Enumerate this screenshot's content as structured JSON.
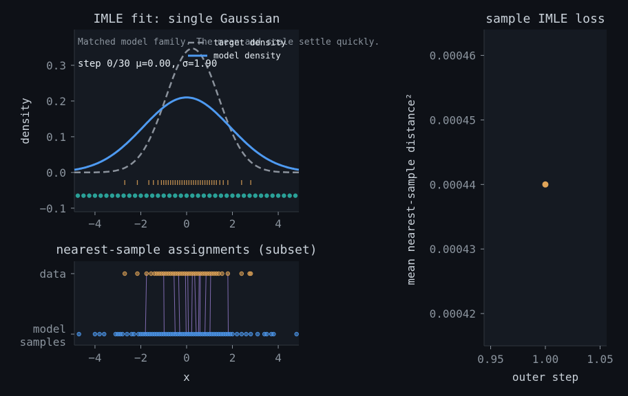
{
  "figure": {
    "background": "#0e1117",
    "panel_bg": "#151a22"
  },
  "colors": {
    "model": "#4e9af1",
    "target": "#8b929c",
    "data": "#e0a458",
    "samples_teal": "#2aa198",
    "match": "#9b7fd4",
    "text": "#c9d1d9",
    "tick": "#8b949e",
    "axis": "#30363d"
  },
  "chart_data": [
    {
      "id": "density",
      "type": "line",
      "title": "IMLE fit: single Gaussian",
      "xlabel": "",
      "ylabel": "density",
      "xlim": [
        -4.9,
        4.9
      ],
      "ylim": [
        -0.11,
        0.4
      ],
      "xticks": [
        "−4",
        "−2",
        "0",
        "2",
        "4"
      ],
      "xtick_values": [
        -4,
        -2,
        0,
        2,
        4
      ],
      "yticks": [
        "−0.1",
        "0.0",
        "0.1",
        "0.2",
        "0.3"
      ],
      "ytick_values": [
        -0.1,
        0.0,
        0.1,
        0.2,
        0.3
      ],
      "annotation": "Matched model family. The mean and scale settle quickly.",
      "status": "step 0/30   μ=0.00, σ=1.90",
      "legend_position": "top-center",
      "series": [
        {
          "name": "target density",
          "style": "dashed",
          "mu": 0.25,
          "sigma": 1.15
        },
        {
          "name": "model density",
          "style": "solid",
          "mu": 0.0,
          "sigma": 1.9
        }
      ],
      "data_rug": [
        -2.7,
        -2.15,
        -1.65,
        -1.45,
        -1.25,
        -1.1,
        -1.0,
        -0.9,
        -0.8,
        -0.7,
        -0.6,
        -0.5,
        -0.4,
        -0.3,
        -0.2,
        -0.1,
        0.0,
        0.1,
        0.2,
        0.3,
        0.4,
        0.5,
        0.6,
        0.7,
        0.8,
        0.9,
        1.0,
        1.1,
        1.2,
        1.3,
        1.45,
        1.6,
        1.8,
        2.4,
        2.8
      ],
      "sample_strip_y": -0.065,
      "sample_strip_x": [
        -4.75,
        -4.5,
        -4.25,
        -4.0,
        -3.75,
        -3.5,
        -3.25,
        -3.0,
        -2.75,
        -2.5,
        -2.25,
        -2.0,
        -1.75,
        -1.5,
        -1.25,
        -1.0,
        -0.75,
        -0.5,
        -0.25,
        0.0,
        0.25,
        0.5,
        0.75,
        1.0,
        1.25,
        1.5,
        1.75,
        2.0,
        2.25,
        2.5,
        2.75,
        3.0,
        3.25,
        3.5,
        3.75,
        4.0,
        4.25,
        4.5,
        4.75
      ]
    },
    {
      "id": "assignments",
      "type": "scatter",
      "title": "nearest-sample assignments (subset)",
      "xlabel": "x",
      "ylabel": "",
      "xlim": [
        -4.9,
        4.9
      ],
      "xticks": [
        "−4",
        "−2",
        "0",
        "2",
        "4"
      ],
      "xtick_values": [
        -4,
        -2,
        0,
        2,
        4
      ],
      "ytick_labels": {
        "data": "data",
        "model_line1": "model",
        "model_line2": "samples"
      },
      "data_points": [
        -2.7,
        -2.15,
        -1.75,
        -1.55,
        -1.4,
        -1.3,
        -1.2,
        -1.1,
        -1.0,
        -0.9,
        -0.8,
        -0.7,
        -0.6,
        -0.5,
        -0.4,
        -0.3,
        -0.2,
        -0.1,
        0.0,
        0.1,
        0.2,
        0.3,
        0.4,
        0.5,
        0.6,
        0.7,
        0.8,
        0.9,
        1.0,
        1.1,
        1.2,
        1.3,
        1.4,
        1.55,
        1.8,
        2.4,
        2.75,
        2.8
      ],
      "model_points": [
        -4.7,
        -4.0,
        -3.8,
        -3.6,
        -3.1,
        -3.0,
        -2.9,
        -2.8,
        -2.6,
        -2.4,
        -2.3,
        -2.1,
        -2.0,
        -1.9,
        -1.8,
        -1.7,
        -1.6,
        -1.5,
        -1.4,
        -1.3,
        -1.2,
        -1.1,
        -1.0,
        -0.9,
        -0.8,
        -0.7,
        -0.6,
        -0.5,
        -0.4,
        -0.3,
        -0.2,
        -0.1,
        0.0,
        0.1,
        0.2,
        0.3,
        0.4,
        0.5,
        0.6,
        0.7,
        0.8,
        0.9,
        1.0,
        1.1,
        1.2,
        1.3,
        1.4,
        1.5,
        1.6,
        1.7,
        1.8,
        1.9,
        2.0,
        2.2,
        2.4,
        2.6,
        2.8,
        3.1,
        3.4,
        3.5,
        3.7,
        3.8,
        4.8
      ],
      "matches": [
        [
          -1.75,
          -1.8
        ],
        [
          -1.0,
          -0.98
        ],
        [
          -0.55,
          -0.5
        ],
        [
          -0.35,
          -0.3
        ],
        [
          -0.05,
          -0.02
        ],
        [
          0.05,
          0.08
        ],
        [
          0.25,
          0.22
        ],
        [
          0.35,
          0.42
        ],
        [
          0.55,
          0.52
        ],
        [
          0.6,
          0.58
        ],
        [
          0.85,
          0.8
        ],
        [
          1.05,
          1.02
        ],
        [
          1.8,
          1.82
        ]
      ]
    },
    {
      "id": "loss",
      "type": "scatter",
      "title": "sample IMLE loss",
      "xlabel": "outer step",
      "ylabel": "mean nearest-sample distance²",
      "xlim": [
        0.944,
        1.056
      ],
      "ylim": [
        0.000415,
        0.000464
      ],
      "xticks": [
        "0.95",
        "1.00",
        "1.05"
      ],
      "xtick_values": [
        0.95,
        1.0,
        1.05
      ],
      "yticks": [
        "0.00042",
        "0.00043",
        "0.00044",
        "0.00045",
        "0.00046"
      ],
      "ytick_values": [
        0.00042,
        0.00043,
        0.00044,
        0.00045,
        0.00046
      ],
      "points": [
        {
          "x": 1.0,
          "y": 0.00044
        }
      ]
    }
  ]
}
